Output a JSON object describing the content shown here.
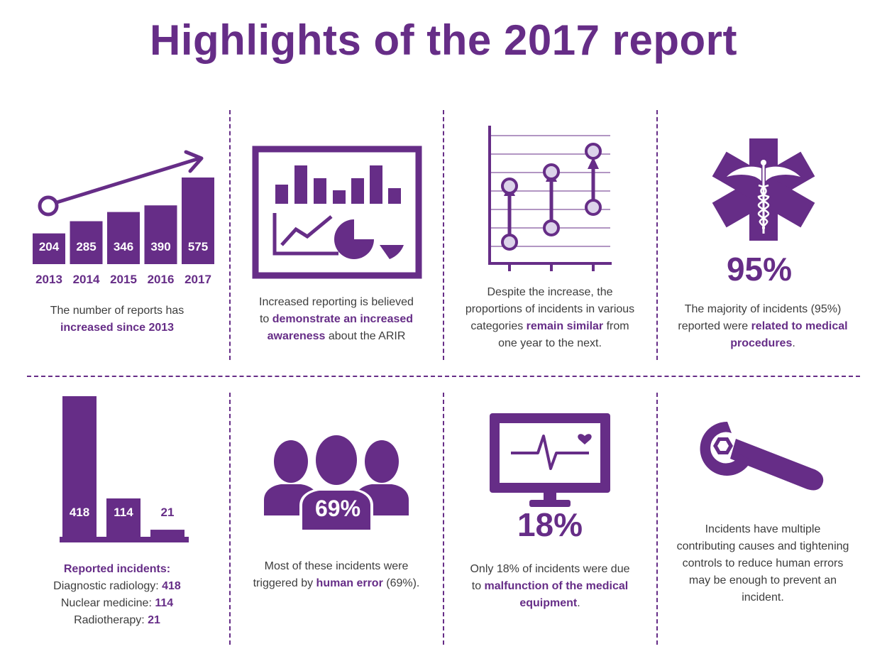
{
  "title": "Highlights of the 2017 report",
  "colors": {
    "accent": "#662d87",
    "light": "#dcd3ea",
    "text": "#3d3d3d"
  },
  "chart_data": [
    {
      "type": "bar",
      "categories": [
        "2013",
        "2014",
        "2015",
        "2016",
        "2017"
      ],
      "values": [
        204,
        285,
        346,
        390,
        575
      ],
      "title": "",
      "xlabel": "",
      "ylabel": ""
    },
    {
      "type": "bar",
      "categories": [
        "Diagnostic radiology",
        "Nuclear medicine",
        "Radiotherapy"
      ],
      "values": [
        418,
        114,
        21
      ],
      "title": "",
      "xlabel": "",
      "ylabel": ""
    }
  ],
  "panels": {
    "reports_growth": {
      "pre": "The number of reports has",
      "bold": "increased since 2013"
    },
    "awareness": {
      "pre": "Increased reporting is believed",
      "mid": "to ",
      "bold1": "demonstrate an increased",
      "bold2": "awareness",
      "post": " about the ARIR"
    },
    "proportions": {
      "line1": "Despite the increase, the",
      "line2": "proportions of incidents in various",
      "pre3": "categories ",
      "bold3": "remain similar",
      "post3": " from",
      "line4": "one year to the next."
    },
    "medical": {
      "percent": "95%",
      "line1": "The majority of incidents (95%)",
      "pre2": "reported were ",
      "bold2": "related to medical",
      "bold3": "procedures",
      "post3": "."
    },
    "reported": {
      "heading": "Reported incidents:",
      "items": [
        {
          "label": "Diagnostic radiology: ",
          "value": "418"
        },
        {
          "label": "Nuclear medicine: ",
          "value": "114"
        },
        {
          "label": "Radiotherapy: ",
          "value": "21"
        }
      ]
    },
    "human_error": {
      "percent": "69%",
      "line1": "Most of these incidents were",
      "pre2": "triggered by ",
      "bold2": "human error",
      "post2": " (69%)."
    },
    "malfunction": {
      "percent": "18%",
      "line1": "Only 18% of incidents were due",
      "pre2": "to ",
      "bold2": "malfunction of the medical",
      "bold3": "equipment",
      "post3": "."
    },
    "causes": {
      "lines": [
        "Incidents have multiple",
        "contributing causes and tightening",
        "controls to reduce human errors",
        "may be enough to prevent an",
        "incident."
      ]
    }
  },
  "icons": [
    "growth-arrow-icon",
    "dashboard-icon",
    "range-chart-icon",
    "star-of-life-icon",
    "people-icon",
    "heart-monitor-icon",
    "wrench-icon"
  ]
}
